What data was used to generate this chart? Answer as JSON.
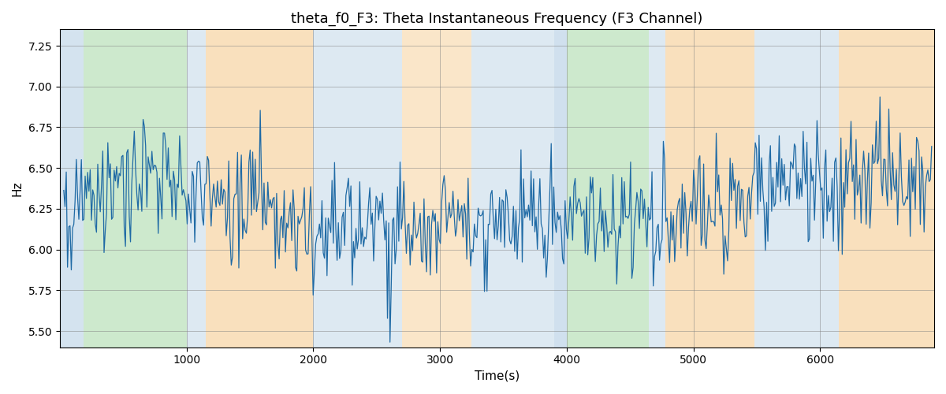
{
  "title": "theta_f0_F3: Theta Instantaneous Frequency (F3 Channel)",
  "xlabel": "Time(s)",
  "ylabel": "Hz",
  "ylim": [
    5.4,
    7.35
  ],
  "xlim": [
    0,
    6900
  ],
  "bg_bands": [
    {
      "xmin": 0,
      "xmax": 185,
      "color": "#aac8e0",
      "alpha": 0.5
    },
    {
      "xmin": 185,
      "xmax": 1000,
      "color": "#90d090",
      "alpha": 0.45
    },
    {
      "xmin": 1000,
      "xmax": 1150,
      "color": "#aac8e0",
      "alpha": 0.4
    },
    {
      "xmin": 1150,
      "xmax": 2000,
      "color": "#f5c888",
      "alpha": 0.55
    },
    {
      "xmin": 2000,
      "xmax": 2200,
      "color": "#aac8e0",
      "alpha": 0.4
    },
    {
      "xmin": 2200,
      "xmax": 2700,
      "color": "#aac8e0",
      "alpha": 0.4
    },
    {
      "xmin": 2700,
      "xmax": 3250,
      "color": "#f5c888",
      "alpha": 0.45
    },
    {
      "xmin": 3250,
      "xmax": 3900,
      "color": "#aac8e0",
      "alpha": 0.4
    },
    {
      "xmin": 3900,
      "xmax": 4000,
      "color": "#aac8e0",
      "alpha": 0.55
    },
    {
      "xmin": 4000,
      "xmax": 4650,
      "color": "#90d090",
      "alpha": 0.45
    },
    {
      "xmin": 4650,
      "xmax": 4780,
      "color": "#aac8e0",
      "alpha": 0.4
    },
    {
      "xmin": 4780,
      "xmax": 5480,
      "color": "#f5c888",
      "alpha": 0.55
    },
    {
      "xmin": 5480,
      "xmax": 6150,
      "color": "#aac8e0",
      "alpha": 0.4
    },
    {
      "xmin": 6150,
      "xmax": 6900,
      "color": "#f5c888",
      "alpha": 0.55
    }
  ],
  "line_color": "#1f6aa5",
  "line_width": 0.9,
  "title_fontsize": 13,
  "label_fontsize": 11,
  "tick_fontsize": 10,
  "seed": 42,
  "n_points": 690,
  "x_start": 30,
  "x_end": 6880,
  "mean_freq": 6.25,
  "noise_std": 0.18,
  "smooth_sigma": 3
}
